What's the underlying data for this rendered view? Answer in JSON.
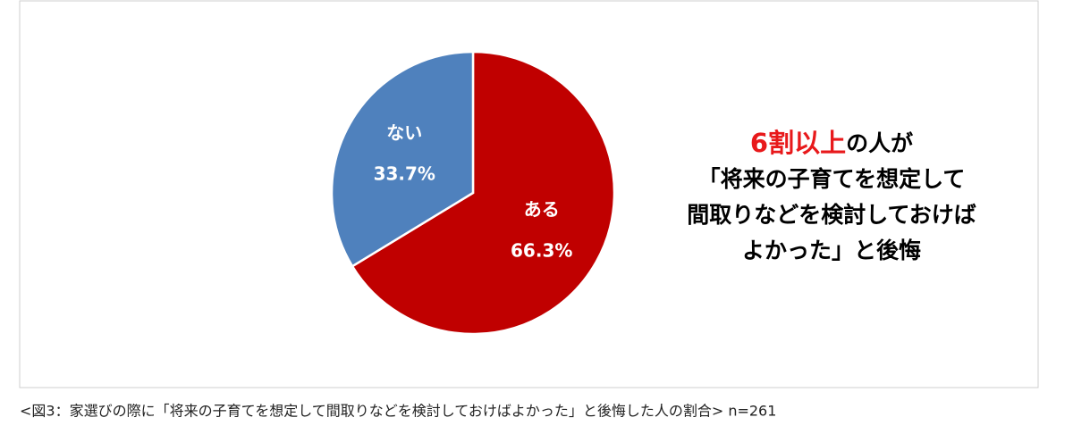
{
  "chart_data": {
    "type": "pie",
    "categories": [
      "ある",
      "ない"
    ],
    "values": [
      66.3,
      33.7
    ],
    "value_labels": [
      "66.3%",
      "33.7%"
    ],
    "colors": [
      "#c00000",
      "#4f81bd"
    ],
    "annotation": [
      [
        "6割以上",
        "の人が"
      ],
      [
        "「将来の子育てを想定して"
      ],
      [
        "間取りなどを検討しておけば"
      ],
      [
        "よかった」と後悔"
      ]
    ],
    "caption": "<図3：家選びの際に「将来の子育てを想定して間取りなどを検討しておけばよかった」と後悔した人の割合> n=261"
  }
}
